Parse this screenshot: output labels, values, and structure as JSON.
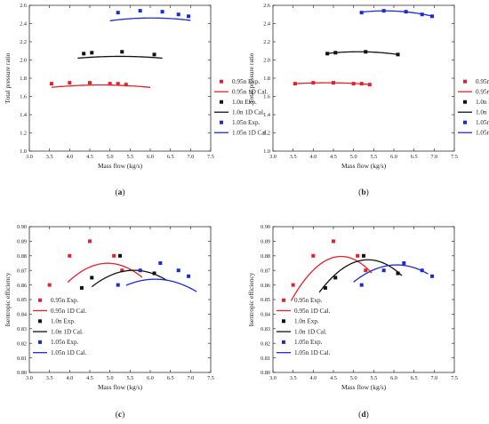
{
  "chart_data": [
    {
      "panel": "(a)",
      "type": "scatter",
      "xlabel": "Mass flow (kg/s)",
      "ylabel": "Total pressure ratio",
      "xlim": [
        3.0,
        7.5
      ],
      "ylim": [
        1.0,
        2.6
      ],
      "xticks": [
        3.0,
        3.5,
        4.0,
        4.5,
        5.0,
        5.5,
        6.0,
        6.5,
        7.0,
        7.5
      ],
      "yticks": [
        1.0,
        1.2,
        1.4,
        1.6,
        1.8,
        2.0,
        2.2,
        2.4,
        2.6
      ],
      "xtick_labels": [
        "3.0",
        "3.5",
        "4.0",
        "4.5",
        "5.0",
        "5.5",
        "6.0",
        "6.5",
        "7.0",
        "7.5"
      ],
      "ytick_labels": [
        "1.0",
        "1.2",
        "1.4",
        "1.6",
        "1.8",
        "2.0",
        "2.2",
        "2.4",
        "2.6"
      ],
      "grid": false,
      "legend_position": "right",
      "series": [
        {
          "name": "0.95n Exp.",
          "kind": "points",
          "color": "#e8202a",
          "x": [
            3.55,
            4.0,
            4.5,
            5.0,
            5.2,
            5.4
          ],
          "y": [
            1.74,
            1.75,
            1.75,
            1.74,
            1.74,
            1.73
          ]
        },
        {
          "name": "0.95n 1D Cal.",
          "kind": "curve",
          "color": "#e8202a",
          "x": [
            3.55,
            4.0,
            4.5,
            5.0,
            5.5,
            6.0
          ],
          "y": [
            1.7,
            1.715,
            1.725,
            1.725,
            1.715,
            1.7
          ]
        },
        {
          "name": "1.0n Exp.",
          "kind": "points",
          "color": "#111111",
          "x": [
            4.35,
            4.55,
            5.3,
            6.1
          ],
          "y": [
            2.07,
            2.08,
            2.09,
            2.06
          ]
        },
        {
          "name": "1.0n 1D Cal.",
          "kind": "curve",
          "color": "#111111",
          "x": [
            4.2,
            4.75,
            5.25,
            5.75,
            6.3
          ],
          "y": [
            2.02,
            2.035,
            2.04,
            2.035,
            2.02
          ]
        },
        {
          "name": "1.05n Exp.",
          "kind": "points",
          "color": "#1a2bd6",
          "x": [
            5.2,
            5.75,
            6.3,
            6.7,
            6.95
          ],
          "y": [
            2.52,
            2.54,
            2.53,
            2.5,
            2.48
          ]
        },
        {
          "name": "1.05n 1D Cal.",
          "kind": "curve",
          "color": "#1a2bd6",
          "x": [
            5.0,
            5.5,
            6.0,
            6.5,
            7.0
          ],
          "y": [
            2.43,
            2.455,
            2.46,
            2.455,
            2.435
          ]
        }
      ]
    },
    {
      "panel": "(b)",
      "type": "scatter",
      "xlabel": "Mass flow (kg/s)",
      "ylabel": "Total pressure ratio",
      "xlim": [
        3.0,
        7.5
      ],
      "ylim": [
        1.0,
        2.6
      ],
      "xticks": [
        3.0,
        3.5,
        4.0,
        4.5,
        5.0,
        5.5,
        6.0,
        6.5,
        7.0,
        7.5
      ],
      "yticks": [
        1.0,
        1.2,
        1.4,
        1.6,
        1.8,
        2.0,
        2.2,
        2.4,
        2.6
      ],
      "xtick_labels": [
        "3.0",
        "3.5",
        "4.0",
        "4.5",
        "5.0",
        "5.5",
        "6.0",
        "6.5",
        "7.0",
        "7.5"
      ],
      "ytick_labels": [
        "1.0",
        "1.2",
        "1.4",
        "1.6",
        "1.8",
        "2.0",
        "2.2",
        "2.4",
        "2.6"
      ],
      "grid": false,
      "legend_position": "right",
      "series": [
        {
          "name": "0.95n Exp.",
          "kind": "points",
          "color": "#e8202a",
          "x": [
            3.55,
            4.0,
            4.5,
            5.0,
            5.2,
            5.4
          ],
          "y": [
            1.74,
            1.75,
            1.75,
            1.74,
            1.74,
            1.73
          ]
        },
        {
          "name": "0.95n 1D Cal.",
          "kind": "curve",
          "color": "#e8202a",
          "x": [
            3.5,
            4.0,
            4.5,
            5.0,
            5.4
          ],
          "y": [
            1.74,
            1.745,
            1.75,
            1.745,
            1.73
          ]
        },
        {
          "name": "1.0n Exp.",
          "kind": "points",
          "color": "#111111",
          "x": [
            4.35,
            4.55,
            5.3,
            6.1
          ],
          "y": [
            2.07,
            2.08,
            2.09,
            2.06
          ]
        },
        {
          "name": "1.0n 1D Cal.",
          "kind": "curve",
          "color": "#111111",
          "x": [
            4.3,
            4.75,
            5.25,
            5.75,
            6.1
          ],
          "y": [
            2.07,
            2.085,
            2.09,
            2.08,
            2.06
          ]
        },
        {
          "name": "1.05n Exp.",
          "kind": "points",
          "color": "#1a2bd6",
          "x": [
            5.2,
            5.75,
            6.3,
            6.7,
            6.95
          ],
          "y": [
            2.52,
            2.54,
            2.53,
            2.5,
            2.48
          ]
        },
        {
          "name": "1.05n 1D Cal.",
          "kind": "curve",
          "color": "#1a2bd6",
          "x": [
            5.15,
            5.6,
            6.1,
            6.6,
            6.95
          ],
          "y": [
            2.525,
            2.535,
            2.535,
            2.515,
            2.48
          ]
        }
      ]
    },
    {
      "panel": "(c)",
      "type": "scatter",
      "xlabel": "Mass flow (kg/s)",
      "ylabel": "Isentropic efficiency",
      "xlim": [
        3.0,
        7.5
      ],
      "ylim": [
        0.8,
        0.9
      ],
      "xticks": [
        3.0,
        3.5,
        4.0,
        4.5,
        5.0,
        5.5,
        6.0,
        6.5,
        7.0,
        7.5
      ],
      "yticks": [
        0.8,
        0.81,
        0.82,
        0.83,
        0.84,
        0.85,
        0.86,
        0.87,
        0.88,
        0.89,
        0.9
      ],
      "xtick_labels": [
        "3.0",
        "3.5",
        "4.0",
        "4.5",
        "5.0",
        "5.5",
        "6.0",
        "6.5",
        "7.0",
        "7.5"
      ],
      "ytick_labels": [
        "0.80",
        "0.81",
        "0.82",
        "0.83",
        "0.84",
        "0.85",
        "0.86",
        "0.87",
        "0.88",
        "0.89",
        "0.90"
      ],
      "grid": false,
      "legend_position": "lower-left",
      "series": [
        {
          "name": "0.95n Exp.",
          "kind": "points",
          "color": "#e8202a",
          "x": [
            3.5,
            4.0,
            4.5,
            5.1,
            5.3
          ],
          "y": [
            0.86,
            0.88,
            0.89,
            0.88,
            0.87
          ]
        },
        {
          "name": "0.95n 1D Cal.",
          "kind": "curve",
          "color": "#e8202a",
          "x": [
            3.95,
            4.4,
            4.95,
            5.4,
            5.8
          ],
          "y": [
            0.862,
            0.8705,
            0.875,
            0.8725,
            0.865
          ]
        },
        {
          "name": "1.0n Exp.",
          "kind": "points",
          "color": "#111111",
          "x": [
            4.3,
            4.55,
            5.25,
            6.1
          ],
          "y": [
            0.858,
            0.865,
            0.88,
            0.868
          ]
        },
        {
          "name": "1.0n 1D Cal.",
          "kind": "curve",
          "color": "#111111",
          "x": [
            4.55,
            5.0,
            5.55,
            6.05,
            6.4
          ],
          "y": [
            0.859,
            0.866,
            0.87,
            0.8685,
            0.863
          ]
        },
        {
          "name": "1.05n Exp.",
          "kind": "points",
          "color": "#1a2bd6",
          "x": [
            5.2,
            5.75,
            6.25,
            6.7,
            6.95
          ],
          "y": [
            0.86,
            0.87,
            0.875,
            0.87,
            0.866
          ]
        },
        {
          "name": "1.05n 1D Cal.",
          "kind": "curve",
          "color": "#1a2bd6",
          "x": [
            5.4,
            5.9,
            6.35,
            6.8,
            7.15
          ],
          "y": [
            0.86,
            0.863,
            0.8635,
            0.861,
            0.855
          ]
        }
      ]
    },
    {
      "panel": "(d)",
      "type": "scatter",
      "xlabel": "Mass flow (kg/s)",
      "ylabel": "Isentropic efficiency",
      "xlim": [
        3.0,
        7.5
      ],
      "ylim": [
        0.8,
        0.9
      ],
      "xticks": [
        3.0,
        3.5,
        4.0,
        4.5,
        5.0,
        5.5,
        6.0,
        6.5,
        7.0,
        7.5
      ],
      "yticks": [
        0.8,
        0.81,
        0.82,
        0.83,
        0.84,
        0.85,
        0.86,
        0.87,
        0.88,
        0.89,
        0.9
      ],
      "xtick_labels": [
        "3.0",
        "3.5",
        "4.0",
        "4.5",
        "5.0",
        "5.5",
        "6.0",
        "6.5",
        "7.0",
        "7.5"
      ],
      "ytick_labels": [
        "0.80",
        "0.81",
        "0.82",
        "0.83",
        "0.84",
        "0.85",
        "0.86",
        "0.87",
        "0.88",
        "0.89",
        "0.90"
      ],
      "grid": false,
      "legend_position": "lower-left",
      "series": [
        {
          "name": "0.95n Exp.",
          "kind": "points",
          "color": "#e8202a",
          "x": [
            3.5,
            4.0,
            4.5,
            5.1,
            5.3
          ],
          "y": [
            0.86,
            0.88,
            0.89,
            0.88,
            0.87
          ]
        },
        {
          "name": "0.95n 1D Cal.",
          "kind": "curve",
          "color": "#e8202a",
          "x": [
            3.45,
            3.85,
            4.3,
            4.75,
            5.15,
            5.45
          ],
          "y": [
            0.849,
            0.866,
            0.8765,
            0.879,
            0.876,
            0.868
          ]
        },
        {
          "name": "1.0n Exp.",
          "kind": "points",
          "color": "#111111",
          "x": [
            4.3,
            4.55,
            5.25,
            6.1
          ],
          "y": [
            0.858,
            0.865,
            0.88,
            0.868
          ]
        },
        {
          "name": "1.0n 1D Cal.",
          "kind": "curve",
          "color": "#111111",
          "x": [
            4.15,
            4.6,
            5.1,
            5.6,
            6.0,
            6.2
          ],
          "y": [
            0.855,
            0.8685,
            0.876,
            0.8765,
            0.8715,
            0.866
          ]
        },
        {
          "name": "1.05n Exp.",
          "kind": "points",
          "color": "#1a2bd6",
          "x": [
            5.2,
            5.75,
            6.25,
            6.7,
            6.95
          ],
          "y": [
            0.86,
            0.87,
            0.875,
            0.87,
            0.866
          ]
        },
        {
          "name": "1.05n 1D Cal.",
          "kind": "curve",
          "color": "#1a2bd6",
          "x": [
            5.0,
            5.5,
            6.0,
            6.45,
            6.85
          ],
          "y": [
            0.862,
            0.8705,
            0.8735,
            0.8725,
            0.8675
          ]
        }
      ]
    }
  ]
}
